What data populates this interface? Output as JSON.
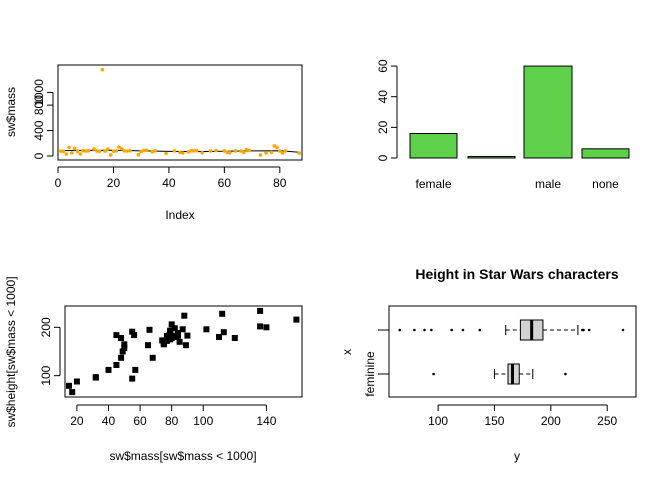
{
  "figure": {
    "colors": {
      "orange_points": "#ffa500",
      "green_bars": "#5ed04a",
      "box_fill": "#d3d3d3",
      "ink": "#000000"
    }
  },
  "chart_data": [
    {
      "id": "panel1",
      "type": "scatter",
      "title": "",
      "xlabel": "Index",
      "ylabel": "sw$mass",
      "xlim": [
        0,
        88
      ],
      "ylim": [
        0,
        1400
      ],
      "xticks": [
        0,
        20,
        40,
        60,
        80
      ],
      "yticks": [
        0,
        400,
        800,
        1000
      ],
      "point_color": "#ffa500",
      "x": [
        1,
        2,
        3,
        4,
        5,
        6,
        7,
        8,
        9,
        10,
        11,
        12,
        13,
        14,
        15,
        16,
        17,
        18,
        19,
        20,
        21,
        22,
        23,
        24,
        25,
        26,
        27,
        28,
        29,
        30,
        31,
        32,
        33,
        34,
        35,
        36,
        37,
        38,
        39,
        40,
        41,
        42,
        43,
        44,
        45,
        46,
        47,
        48,
        49,
        50,
        51,
        52,
        53,
        54,
        55,
        56,
        57,
        58,
        59,
        60,
        61,
        62,
        63,
        64,
        65,
        66,
        67,
        68,
        69,
        70,
        71,
        72,
        73,
        74,
        75,
        76,
        77,
        78,
        79,
        80,
        81,
        82,
        83,
        84,
        85,
        86,
        87
      ],
      "y": [
        77,
        75,
        32,
        136,
        49,
        120,
        75,
        32,
        84,
        77,
        84,
        null,
        112,
        80,
        74,
        1358,
        77,
        110,
        17,
        75,
        78.2,
        140,
        113,
        79,
        79,
        83,
        null,
        null,
        20,
        68,
        89,
        90,
        null,
        66,
        82,
        null,
        null,
        null,
        40,
        null,
        null,
        80,
        null,
        55,
        45,
        null,
        65,
        84,
        82,
        87,
        null,
        50,
        null,
        null,
        80,
        null,
        85,
        null,
        null,
        80,
        56.2,
        50,
        null,
        80,
        null,
        79,
        55,
        102,
        88,
        null,
        null,
        null,
        15,
        null,
        48,
        null,
        57,
        159,
        136,
        79,
        48,
        80,
        null,
        null,
        null,
        null,
        45
      ],
      "line_x": [
        1,
        10,
        20,
        30,
        40,
        50,
        60,
        70,
        80,
        87
      ],
      "line_y": [
        85,
        88,
        92,
        80,
        72,
        70,
        76,
        80,
        84,
        60
      ]
    },
    {
      "id": "panel2",
      "type": "bar",
      "title": "",
      "xlabel": "",
      "ylabel": "",
      "categories": [
        "female",
        "",
        "male",
        "none"
      ],
      "values": [
        16,
        1,
        60,
        6
      ],
      "ylim": [
        0,
        62
      ],
      "yticks": [
        0,
        20,
        40,
        60
      ],
      "bar_color": "#5ed04a"
    },
    {
      "id": "panel3",
      "type": "scatter",
      "title": "",
      "xlabel": "sw$mass[sw$mass < 1000]",
      "ylabel": "sw$height[sw$mass < 1000]",
      "xlim": [
        15,
        160
      ],
      "ylim": [
        60,
        240
      ],
      "xticks": [
        20,
        40,
        60,
        80,
        100,
        140
      ],
      "yticks": [
        100,
        200
      ],
      "x": [
        77,
        75,
        32,
        136,
        49,
        120,
        75,
        32,
        84,
        77,
        84,
        112,
        80,
        74,
        77,
        110,
        17,
        75,
        78.2,
        140,
        113,
        79,
        79,
        83,
        20,
        68,
        89,
        90,
        66,
        82,
        40,
        80,
        55,
        45,
        65,
        84,
        82,
        87,
        50,
        80,
        85,
        80,
        56.2,
        50,
        80,
        79,
        55,
        102,
        88,
        15,
        48,
        57,
        159,
        136,
        79,
        48,
        80,
        45
      ],
      "y": [
        172,
        167,
        96,
        202,
        150,
        178,
        165,
        97,
        183,
        182,
        188,
        228,
        180,
        173,
        175,
        180,
        66,
        170,
        183,
        200,
        190,
        177,
        175,
        180,
        88,
        137,
        163,
        183,
        195,
        180,
        112,
        180,
        94,
        122,
        163,
        188,
        198,
        196,
        157,
        183,
        170,
        183,
        184,
        165,
        178,
        193,
        191,
        196,
        224,
        79,
        137,
        112,
        216,
        234,
        188,
        178,
        206,
        184
      ]
    },
    {
      "id": "panel4",
      "type": "box",
      "title": "Height in Star Wars characters",
      "xlabel": "y",
      "ylabel": "x",
      "categories": [
        "feminine",
        ""
      ],
      "xlim": [
        60,
        272
      ],
      "xticks": [
        100,
        150,
        200,
        250
      ],
      "box_color": "#d3d3d3",
      "boxes": [
        {
          "label": "feminine",
          "whisker_low": 150,
          "q1": 162,
          "median": 166,
          "q3": 172,
          "whisker_high": 184,
          "outliers": [
            96,
            213
          ]
        },
        {
          "label": "",
          "whisker_low": 160,
          "q1": 173,
          "median": 183,
          "q3": 193,
          "whisker_high": 224,
          "outliers": [
            66,
            79,
            88,
            94,
            112,
            122,
            137,
            228,
            229,
            234,
            264
          ]
        }
      ]
    }
  ]
}
